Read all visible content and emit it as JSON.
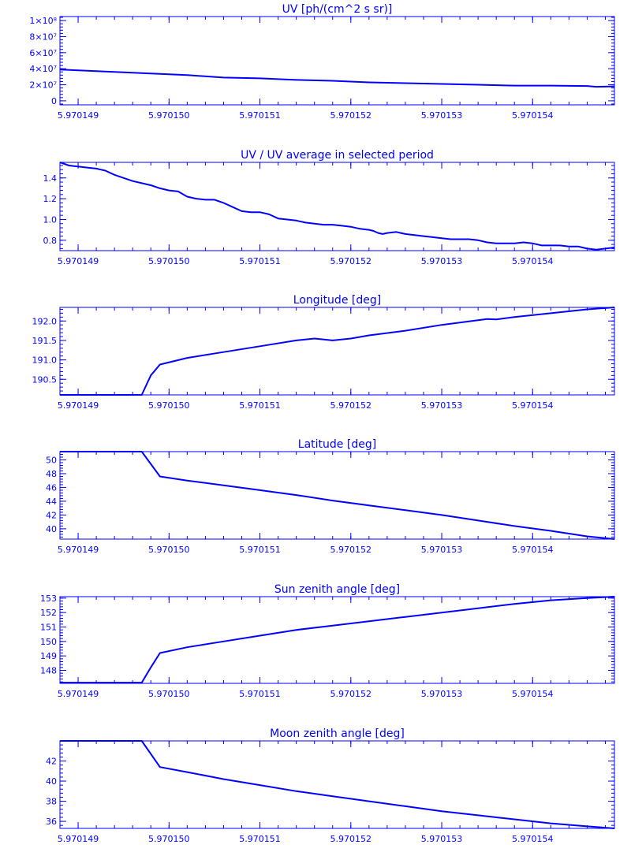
{
  "colors": {
    "line": "#0000ff",
    "background": "#ffffff"
  },
  "chart_data": [
    {
      "type": "line",
      "title": "UV [ph/(cm^2 s sr)]",
      "xlim": [
        5.9701488,
        5.9701549
      ],
      "ylim": [
        -5000000,
        105000000
      ],
      "xticks": [
        {
          "value": 5.970149,
          "label": "5.970149"
        },
        {
          "value": 5.97015,
          "label": "5.970150"
        },
        {
          "value": 5.970151,
          "label": "5.970151"
        },
        {
          "value": 5.970152,
          "label": "5.970152"
        },
        {
          "value": 5.970153,
          "label": "5.970153"
        },
        {
          "value": 5.970154,
          "label": "5.970154"
        }
      ],
      "yticks": [
        {
          "value": 0,
          "label": "0"
        },
        {
          "value": 20000000,
          "label": "2×10⁷"
        },
        {
          "value": 40000000,
          "label": "4×10⁷"
        },
        {
          "value": 60000000,
          "label": "6×10⁷"
        },
        {
          "value": 80000000,
          "label": "8×10⁷"
        },
        {
          "value": 100000000,
          "label": "1×10⁸"
        }
      ],
      "grid": false,
      "x": [
        5.9701488,
        5.9701494,
        5.9701498,
        5.9701502,
        5.9701506,
        5.970151,
        5.9701514,
        5.9701518,
        5.9701522,
        5.9701526,
        5.970153,
        5.9701534,
        5.9701538,
        5.9701542,
        5.9701546,
        5.9701547,
        5.9701549
      ],
      "y": [
        39000000,
        36000000,
        34000000,
        32000000,
        29000000,
        28000000,
        26000000,
        25000000,
        23000000,
        22000000,
        21000000,
        20000000,
        19000000,
        19000000,
        18500000,
        17500000,
        18000000
      ]
    },
    {
      "type": "line",
      "title": "UV / UV average in selected period",
      "xlim": [
        5.9701488,
        5.9701549
      ],
      "ylim": [
        0.7,
        1.55
      ],
      "xticks": [
        {
          "value": 5.970149,
          "label": "5.970149"
        },
        {
          "value": 5.97015,
          "label": "5.970150"
        },
        {
          "value": 5.970151,
          "label": "5.970151"
        },
        {
          "value": 5.970152,
          "label": "5.970152"
        },
        {
          "value": 5.970153,
          "label": "5.970153"
        },
        {
          "value": 5.970154,
          "label": "5.970154"
        }
      ],
      "yticks": [
        {
          "value": 0.8,
          "label": "0.8"
        },
        {
          "value": 1.0,
          "label": "1.0"
        },
        {
          "value": 1.2,
          "label": "1.2"
        },
        {
          "value": 1.4,
          "label": "1.4"
        }
      ],
      "grid": false,
      "x": [
        5.9701488,
        5.9701489,
        5.9701491,
        5.9701492,
        5.9701493,
        5.9701494,
        5.9701495,
        5.9701496,
        5.9701497,
        5.9701498,
        5.9701499,
        5.97015,
        5.9701501,
        5.9701502,
        5.9701503,
        5.9701504,
        5.9701505,
        5.9701506,
        5.9701507,
        5.9701508,
        5.9701509,
        5.970151,
        5.9701511,
        5.9701512,
        5.9701513,
        5.9701514,
        5.9701515,
        5.9701516,
        5.9701517,
        5.9701518,
        5.9701519,
        5.970152,
        5.9701521,
        5.9701522,
        5.97015225,
        5.9701523,
        5.97015235,
        5.9701524,
        5.9701525,
        5.9701526,
        5.9701527,
        5.9701528,
        5.9701529,
        5.970153,
        5.9701531,
        5.9701532,
        5.9701533,
        5.9701534,
        5.9701535,
        5.9701536,
        5.9701537,
        5.9701538,
        5.9701539,
        5.970154,
        5.9701541,
        5.9701542,
        5.9701543,
        5.9701544,
        5.9701545,
        5.9701546,
        5.9701547,
        5.9701548,
        5.9701549
      ],
      "y": [
        1.55,
        1.52,
        1.5,
        1.49,
        1.47,
        1.43,
        1.4,
        1.37,
        1.35,
        1.33,
        1.3,
        1.28,
        1.27,
        1.22,
        1.2,
        1.19,
        1.19,
        1.16,
        1.12,
        1.08,
        1.07,
        1.07,
        1.05,
        1.01,
        1.0,
        0.99,
        0.97,
        0.96,
        0.95,
        0.95,
        0.94,
        0.93,
        0.91,
        0.9,
        0.89,
        0.87,
        0.86,
        0.87,
        0.88,
        0.86,
        0.85,
        0.84,
        0.83,
        0.82,
        0.81,
        0.81,
        0.81,
        0.8,
        0.78,
        0.77,
        0.77,
        0.77,
        0.78,
        0.77,
        0.75,
        0.75,
        0.75,
        0.74,
        0.74,
        0.72,
        0.71,
        0.72,
        0.73
      ]
    },
    {
      "type": "line",
      "title": "Longitude [deg]",
      "xlim": [
        5.9701488,
        5.9701549
      ],
      "ylim": [
        190.1,
        192.35
      ],
      "xticks": [
        {
          "value": 5.970149,
          "label": "5.970149"
        },
        {
          "value": 5.97015,
          "label": "5.970150"
        },
        {
          "value": 5.970151,
          "label": "5.970151"
        },
        {
          "value": 5.970152,
          "label": "5.970152"
        },
        {
          "value": 5.970153,
          "label": "5.970153"
        },
        {
          "value": 5.970154,
          "label": "5.970154"
        }
      ],
      "yticks": [
        {
          "value": 190.5,
          "label": "190.5"
        },
        {
          "value": 191.0,
          "label": "191.0"
        },
        {
          "value": 191.5,
          "label": "191.5"
        },
        {
          "value": 192.0,
          "label": "192.0"
        }
      ],
      "grid": false,
      "x": [
        5.9701488,
        5.9701497,
        5.9701498,
        5.9701499,
        5.9701502,
        5.9701506,
        5.970151,
        5.9701514,
        5.9701516,
        5.9701518,
        5.970152,
        5.9701522,
        5.9701526,
        5.970153,
        5.9701534,
        5.9701535,
        5.9701536,
        5.9701538,
        5.9701542,
        5.9701546,
        5.9701549
      ],
      "y": [
        190.1,
        190.1,
        190.6,
        190.88,
        191.05,
        191.2,
        191.35,
        191.5,
        191.55,
        191.5,
        191.55,
        191.63,
        191.75,
        191.9,
        192.02,
        192.05,
        192.04,
        192.1,
        192.2,
        192.3,
        192.35
      ]
    },
    {
      "type": "line",
      "title": "Latitude [deg]",
      "xlim": [
        5.9701488,
        5.9701549
      ],
      "ylim": [
        38.5,
        51.2
      ],
      "xticks": [
        {
          "value": 5.970149,
          "label": "5.970149"
        },
        {
          "value": 5.97015,
          "label": "5.970150"
        },
        {
          "value": 5.970151,
          "label": "5.970151"
        },
        {
          "value": 5.970152,
          "label": "5.970152"
        },
        {
          "value": 5.970153,
          "label": "5.970153"
        },
        {
          "value": 5.970154,
          "label": "5.970154"
        }
      ],
      "yticks": [
        {
          "value": 40,
          "label": "40"
        },
        {
          "value": 42,
          "label": "42"
        },
        {
          "value": 44,
          "label": "44"
        },
        {
          "value": 46,
          "label": "46"
        },
        {
          "value": 48,
          "label": "48"
        },
        {
          "value": 50,
          "label": "50"
        }
      ],
      "grid": false,
      "x": [
        5.9701488,
        5.9701497,
        5.9701499,
        5.9701502,
        5.9701506,
        5.970151,
        5.9701514,
        5.9701518,
        5.9701522,
        5.9701526,
        5.970153,
        5.9701534,
        5.9701538,
        5.9701542,
        5.9701546,
        5.9701549
      ],
      "y": [
        51.2,
        51.2,
        47.6,
        47.0,
        46.3,
        45.6,
        44.9,
        44.1,
        43.4,
        42.7,
        42.0,
        41.2,
        40.4,
        39.7,
        38.9,
        38.5
      ]
    },
    {
      "type": "line",
      "title": "Sun zenith angle [deg]",
      "xlim": [
        5.9701488,
        5.9701549
      ],
      "ylim": [
        147.1,
        153.1
      ],
      "xticks": [
        {
          "value": 5.970149,
          "label": "5.970149"
        },
        {
          "value": 5.97015,
          "label": "5.970150"
        },
        {
          "value": 5.970151,
          "label": "5.970151"
        },
        {
          "value": 5.970152,
          "label": "5.970152"
        },
        {
          "value": 5.970153,
          "label": "5.970153"
        },
        {
          "value": 5.970154,
          "label": "5.970154"
        }
      ],
      "yticks": [
        {
          "value": 148,
          "label": "148"
        },
        {
          "value": 149,
          "label": "149"
        },
        {
          "value": 150,
          "label": "150"
        },
        {
          "value": 151,
          "label": "151"
        },
        {
          "value": 152,
          "label": "152"
        },
        {
          "value": 153,
          "label": "153"
        }
      ],
      "grid": false,
      "x": [
        5.9701488,
        5.9701497,
        5.9701498,
        5.9701499,
        5.9701502,
        5.9701506,
        5.970151,
        5.9701514,
        5.9701518,
        5.9701522,
        5.9701526,
        5.970153,
        5.9701534,
        5.9701538,
        5.9701542,
        5.9701546,
        5.9701549
      ],
      "y": [
        147.15,
        147.15,
        148.2,
        149.2,
        149.6,
        150.0,
        150.4,
        150.8,
        151.1,
        151.4,
        151.7,
        152.0,
        152.3,
        152.6,
        152.85,
        153.0,
        153.1
      ]
    },
    {
      "type": "line",
      "title": "Moon zenith angle [deg]",
      "xlim": [
        5.9701488,
        5.9701549
      ],
      "ylim": [
        35.3,
        44.0
      ],
      "xticks": [
        {
          "value": 5.970149,
          "label": "5.970149"
        },
        {
          "value": 5.97015,
          "label": "5.970150"
        },
        {
          "value": 5.970151,
          "label": "5.970151"
        },
        {
          "value": 5.970152,
          "label": "5.970152"
        },
        {
          "value": 5.970153,
          "label": "5.970153"
        },
        {
          "value": 5.970154,
          "label": "5.970154"
        }
      ],
      "yticks": [
        {
          "value": 36,
          "label": "36"
        },
        {
          "value": 38,
          "label": "38"
        },
        {
          "value": 40,
          "label": "40"
        },
        {
          "value": 42,
          "label": "42"
        }
      ],
      "grid": false,
      "x": [
        5.9701488,
        5.9701497,
        5.9701499,
        5.9701502,
        5.9701506,
        5.970151,
        5.9701514,
        5.9701518,
        5.9701522,
        5.9701526,
        5.970153,
        5.9701534,
        5.9701538,
        5.9701542,
        5.9701546,
        5.9701549
      ],
      "y": [
        44.0,
        44.0,
        41.4,
        40.9,
        40.2,
        39.6,
        39.0,
        38.5,
        38.0,
        37.5,
        37.0,
        36.6,
        36.2,
        35.8,
        35.5,
        35.3
      ]
    }
  ]
}
